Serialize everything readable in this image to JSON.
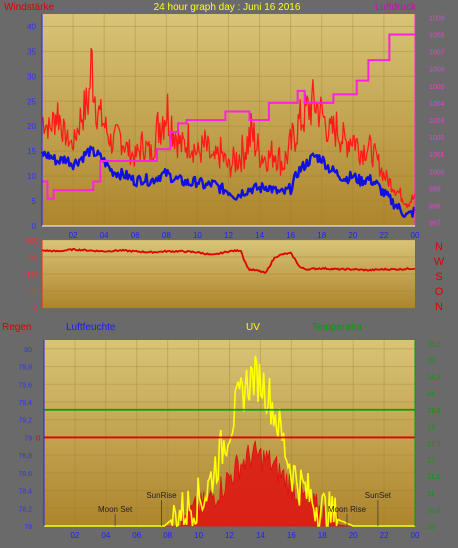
{
  "colors": {
    "background": "#6a6a6a",
    "plot_top": "#d7c274",
    "plot_bottom": "#b28a2f",
    "wind_gust": "#ff1a1a",
    "wind_avg": "#1010e0",
    "pressure": "#ff20e0",
    "direction": "#e00000",
    "humidity": "#1010e0",
    "rain": "#e00000",
    "uv": "#ffff00",
    "temperature": "#00a000",
    "solar_fill": "#e01010"
  },
  "chart_data": [
    {
      "id": "wind",
      "type": "line",
      "title": "24 hour graph day : Juni 16 2016",
      "left_label": "Windstärke",
      "right_label": "Luftdruck",
      "x_tick_labels": [
        "02",
        "04",
        "06",
        "08",
        "10",
        "12",
        "14",
        "16",
        "18",
        "20",
        "22",
        "00"
      ],
      "y_left_ticks": [
        "0",
        "5",
        "10",
        "15",
        "20",
        "25",
        "30",
        "35",
        "40"
      ],
      "y_right_ticks": [
        "997",
        "998",
        "999",
        "1000",
        "1001",
        "1002",
        "1003",
        "1004",
        "1005",
        "1006",
        "1007",
        "1008",
        "1009"
      ],
      "x_range_hours": [
        0,
        24
      ],
      "ylim_left": [
        0,
        42.5
      ],
      "ylim_right": [
        996.8,
        1009.2
      ],
      "grid": true,
      "series": [
        {
          "key": "avg",
          "axis": "left",
          "points": [
            [
              0.0,
              14.5
            ],
            [
              0.5,
              14.0
            ],
            [
              1.0,
              13.0
            ],
            [
              1.5,
              13.5
            ],
            [
              2.0,
              12.5
            ],
            [
              2.5,
              13.5
            ],
            [
              3.0,
              15.0
            ],
            [
              3.5,
              14.5
            ],
            [
              4.0,
              13.0
            ],
            [
              4.5,
              11.0
            ],
            [
              5.0,
              10.5
            ],
            [
              5.5,
              10.0
            ],
            [
              6.0,
              9.0
            ],
            [
              6.5,
              9.5
            ],
            [
              7.0,
              9.0
            ],
            [
              7.5,
              10.0
            ],
            [
              8.0,
              10.5
            ],
            [
              8.5,
              9.5
            ],
            [
              9.0,
              9.0
            ],
            [
              9.5,
              8.5
            ],
            [
              10.0,
              9.0
            ],
            [
              10.5,
              8.0
            ],
            [
              11.0,
              8.5
            ],
            [
              11.5,
              7.5
            ],
            [
              12.0,
              7.0
            ],
            [
              12.5,
              6.0
            ],
            [
              13.0,
              7.0
            ],
            [
              13.5,
              7.5
            ],
            [
              14.0,
              7.5
            ],
            [
              14.5,
              8.0
            ],
            [
              15.0,
              7.0
            ],
            [
              15.5,
              6.5
            ],
            [
              16.0,
              7.5
            ],
            [
              16.5,
              11.0
            ],
            [
              17.0,
              12.5
            ],
            [
              17.5,
              14.0
            ],
            [
              18.0,
              13.5
            ],
            [
              18.5,
              11.5
            ],
            [
              19.0,
              10.5
            ],
            [
              19.5,
              9.5
            ],
            [
              20.0,
              10.0
            ],
            [
              20.5,
              9.0
            ],
            [
              21.0,
              9.5
            ],
            [
              21.5,
              8.5
            ],
            [
              22.0,
              6.5
            ],
            [
              22.5,
              5.0
            ],
            [
              23.0,
              3.5
            ],
            [
              23.5,
              2.0
            ],
            [
              24.0,
              3.0
            ]
          ]
        },
        {
          "key": "gust",
          "axis": "left",
          "points": [
            [
              0.0,
              25.0
            ],
            [
              0.5,
              22.0
            ],
            [
              1.0,
              28.0
            ],
            [
              1.5,
              20.0
            ],
            [
              2.0,
              18.0
            ],
            [
              2.5,
              26.0
            ],
            [
              3.0,
              30.0
            ],
            [
              3.2,
              42.0
            ],
            [
              3.5,
              28.0
            ],
            [
              4.0,
              24.0
            ],
            [
              4.5,
              19.0
            ],
            [
              5.0,
              22.0
            ],
            [
              5.5,
              18.0
            ],
            [
              6.0,
              16.0
            ],
            [
              6.5,
              20.0
            ],
            [
              7.0,
              17.0
            ],
            [
              7.5,
              25.0
            ],
            [
              8.0,
              30.0
            ],
            [
              8.5,
              24.0
            ],
            [
              9.0,
              19.0
            ],
            [
              9.5,
              22.0
            ],
            [
              10.0,
              17.0
            ],
            [
              10.5,
              20.0
            ],
            [
              11.0,
              15.0
            ],
            [
              11.5,
              18.0
            ],
            [
              12.0,
              14.0
            ],
            [
              12.5,
              17.0
            ],
            [
              13.0,
              19.0
            ],
            [
              13.5,
              24.0
            ],
            [
              14.0,
              18.0
            ],
            [
              14.5,
              16.0
            ],
            [
              15.0,
              19.0
            ],
            [
              15.5,
              15.0
            ],
            [
              16.0,
              20.0
            ],
            [
              16.5,
              25.0
            ],
            [
              17.0,
              28.0
            ],
            [
              17.5,
              30.0
            ],
            [
              18.0,
              27.0
            ],
            [
              18.5,
              22.0
            ],
            [
              19.0,
              24.0
            ],
            [
              19.5,
              20.0
            ],
            [
              20.0,
              22.0
            ],
            [
              20.5,
              18.0
            ],
            [
              21.0,
              19.0
            ],
            [
              21.5,
              16.0
            ],
            [
              22.0,
              12.0
            ],
            [
              22.5,
              10.0
            ],
            [
              23.0,
              8.0
            ],
            [
              23.5,
              6.0
            ],
            [
              24.0,
              7.0
            ]
          ]
        },
        {
          "key": "pressure",
          "axis": "right",
          "step": true,
          "points": [
            [
              0.0,
              999.4
            ],
            [
              0.35,
              998.4
            ],
            [
              0.75,
              998.9
            ],
            [
              3.3,
              999.4
            ],
            [
              3.75,
              1000.6
            ],
            [
              7.4,
              1001.3
            ],
            [
              8.25,
              1002.3
            ],
            [
              8.75,
              1002.8
            ],
            [
              9.3,
              1003.0
            ],
            [
              11.8,
              1003.5
            ],
            [
              13.35,
              1003.0
            ],
            [
              14.6,
              1004.0
            ],
            [
              16.45,
              1004.7
            ],
            [
              16.9,
              1004.0
            ],
            [
              18.75,
              1004.5
            ],
            [
              20.25,
              1005.3
            ],
            [
              21.0,
              1006.5
            ],
            [
              22.35,
              1008.0
            ],
            [
              24.0,
              1008.0
            ]
          ]
        }
      ]
    },
    {
      "id": "direction",
      "type": "line",
      "y_left_ticks": [
        "0",
        "90",
        "180",
        "270",
        "360"
      ],
      "compass_labels": [
        "N",
        "W",
        "S",
        "O",
        "N"
      ],
      "ylim": [
        0,
        360
      ],
      "x_range_hours": [
        0,
        24
      ],
      "series": [
        {
          "key": "direction",
          "points": [
            [
              0.0,
              305
            ],
            [
              1.0,
              300
            ],
            [
              2.0,
              310
            ],
            [
              3.0,
              305
            ],
            [
              4.0,
              300
            ],
            [
              5.0,
              305
            ],
            [
              6.0,
              300
            ],
            [
              7.0,
              295
            ],
            [
              8.0,
              300
            ],
            [
              9.0,
              300
            ],
            [
              10.0,
              295
            ],
            [
              11.0,
              280
            ],
            [
              12.0,
              300
            ],
            [
              12.8,
              305
            ],
            [
              13.0,
              255
            ],
            [
              13.3,
              205
            ],
            [
              13.7,
              200
            ],
            [
              14.0,
              195
            ],
            [
              14.4,
              185
            ],
            [
              14.8,
              245
            ],
            [
              15.0,
              270
            ],
            [
              15.5,
              285
            ],
            [
              16.0,
              290
            ],
            [
              16.3,
              255
            ],
            [
              16.6,
              215
            ],
            [
              17.0,
              205
            ],
            [
              18.0,
              210
            ],
            [
              19.0,
              205
            ],
            [
              20.0,
              205
            ],
            [
              21.0,
              200
            ],
            [
              22.0,
              205
            ],
            [
              23.0,
              205
            ],
            [
              24.0,
              210
            ]
          ]
        }
      ]
    },
    {
      "id": "weather",
      "type": "line",
      "header_labels": [
        "Regen",
        "Luftfeuchte",
        "UV",
        "Temperatur"
      ],
      "y_left_ticks": [
        "78",
        "78,2",
        "78,4",
        "78,6",
        "78,8",
        "79",
        "79,2",
        "79,4",
        "79,6",
        "79,8",
        "80"
      ],
      "y_right_ticks": [
        "10",
        "10,5",
        "11",
        "11,5",
        "12",
        "12,5",
        "13",
        "13,5",
        "14",
        "14,5",
        "15",
        "15,5"
      ],
      "rain_tick": "0",
      "x_tick_labels": [
        "02",
        "04",
        "06",
        "08",
        "10",
        "12",
        "14",
        "16",
        "18",
        "20",
        "22",
        "00"
      ],
      "annotations": [
        "Moon Set",
        "SunRise",
        "Moon Rise",
        "SunSet"
      ],
      "ylim_left": [
        78,
        80.1
      ],
      "ylim_right": [
        10,
        15.6
      ],
      "x_range_hours": [
        0,
        24
      ],
      "grid": true,
      "series": [
        {
          "key": "temperature",
          "points": [
            [
              0,
              13.5
            ],
            [
              24,
              13.5
            ]
          ]
        },
        {
          "key": "humidity",
          "points": [
            [
              0,
              79
            ],
            [
              24,
              79
            ]
          ]
        },
        {
          "key": "uv",
          "points": [
            [
              0,
              10
            ],
            [
              7.8,
              10
            ],
            [
              8.5,
              10.3
            ],
            [
              9.5,
              10.6
            ],
            [
              10.5,
              11.0
            ],
            [
              11.0,
              11.7
            ],
            [
              11.5,
              12.3
            ],
            [
              12.0,
              13.0
            ],
            [
              12.5,
              13.6
            ],
            [
              13.0,
              14.2
            ],
            [
              13.5,
              14.5
            ],
            [
              14.0,
              14.4
            ],
            [
              14.5,
              14.0
            ],
            [
              15.0,
              13.3
            ],
            [
              15.5,
              12.5
            ],
            [
              16.0,
              11.7
            ],
            [
              16.5,
              11.3
            ],
            [
              17.0,
              11.0
            ],
            [
              17.5,
              10.7
            ],
            [
              18.0,
              10.5
            ],
            [
              19.0,
              10.2
            ],
            [
              20.0,
              10.0
            ],
            [
              24,
              10
            ]
          ]
        },
        {
          "key": "solar",
          "points": [
            [
              0,
              10
            ],
            [
              8.5,
              10
            ],
            [
              9.5,
              10.2
            ],
            [
              10.5,
              10.5
            ],
            [
              11.5,
              11.0
            ],
            [
              12.5,
              11.6
            ],
            [
              13.5,
              12.0
            ],
            [
              14.5,
              11.8
            ],
            [
              15.5,
              11.3
            ],
            [
              16.5,
              10.8
            ],
            [
              17.5,
              10.4
            ],
            [
              18.5,
              10.1
            ],
            [
              19.5,
              10
            ],
            [
              24,
              10
            ]
          ]
        }
      ]
    }
  ]
}
